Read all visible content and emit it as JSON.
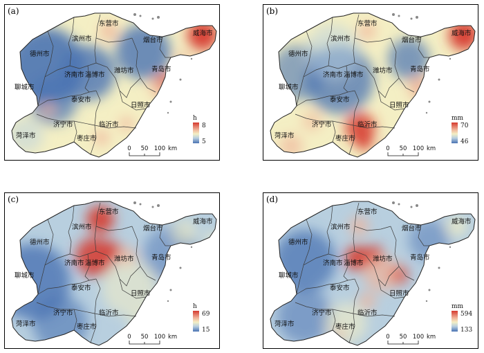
{
  "palette": {
    "high": "#d63a2f",
    "mid_high": "#f0b49a",
    "mid": "#f4efc4",
    "mid_low": "#b8cfdf",
    "low": "#4a73b3",
    "border": "#3a3a3a"
  },
  "cities": [
    {
      "key": "dongying",
      "name": "东营市"
    },
    {
      "key": "binzhou",
      "name": "滨州市"
    },
    {
      "key": "dezhou",
      "name": "德州市"
    },
    {
      "key": "yantai",
      "name": "烟台市"
    },
    {
      "key": "weihai",
      "name": "威海市"
    },
    {
      "key": "jinan",
      "name": "济南市"
    },
    {
      "key": "zibo",
      "name": "淄博市"
    },
    {
      "key": "weifang",
      "name": "潍坊市"
    },
    {
      "key": "qingdao",
      "name": "青岛市"
    },
    {
      "key": "liaocheng_a",
      "name": "聊城市"
    },
    {
      "key": "liaocheng_b",
      "name": "聊城市"
    },
    {
      "key": "taian",
      "name": "泰安市"
    },
    {
      "key": "rizhao",
      "name": "日照市"
    },
    {
      "key": "heze",
      "name": "菏泽市"
    },
    {
      "key": "jining",
      "name": "济宁市"
    },
    {
      "key": "linyi",
      "name": "临沂市"
    },
    {
      "key": "zaozhuang",
      "name": "枣庄市"
    }
  ],
  "scale_bar": {
    "labels": [
      "0",
      "50",
      "100",
      "km"
    ]
  },
  "panels": [
    {
      "id": "a",
      "label": "(a)",
      "unit": "h",
      "max": "8",
      "min": "5"
    },
    {
      "id": "b",
      "label": "(b)",
      "unit": "mm",
      "max": "70",
      "min": "46"
    },
    {
      "id": "c",
      "label": "(c)",
      "unit": "h",
      "max": "69",
      "min": "15"
    },
    {
      "id": "d",
      "label": "(d)",
      "unit": "mm",
      "max": "594",
      "min": "133"
    }
  ]
}
